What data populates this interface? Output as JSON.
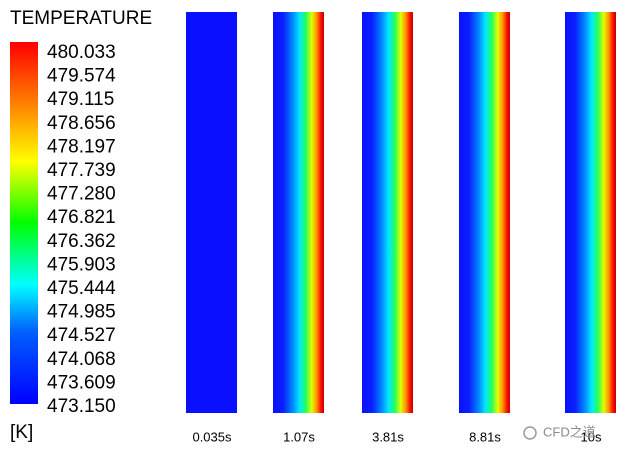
{
  "legend": {
    "title": "TEMPERATURE",
    "labels": [
      "480.033",
      "479.574",
      "479.115",
      "478.656",
      "478.197",
      "477.739",
      "477.280",
      "476.821",
      "476.362",
      "475.903",
      "475.444",
      "474.985",
      "474.527",
      "474.068",
      "473.609",
      "473.150"
    ],
    "unit": "[K]"
  },
  "panels": [
    {
      "label": "0.035s"
    },
    {
      "label": "1.07s"
    },
    {
      "label": "3.81s"
    },
    {
      "label": "8.81s"
    },
    {
      "label": "10s"
    }
  ],
  "watermark": "CFD之道"
}
